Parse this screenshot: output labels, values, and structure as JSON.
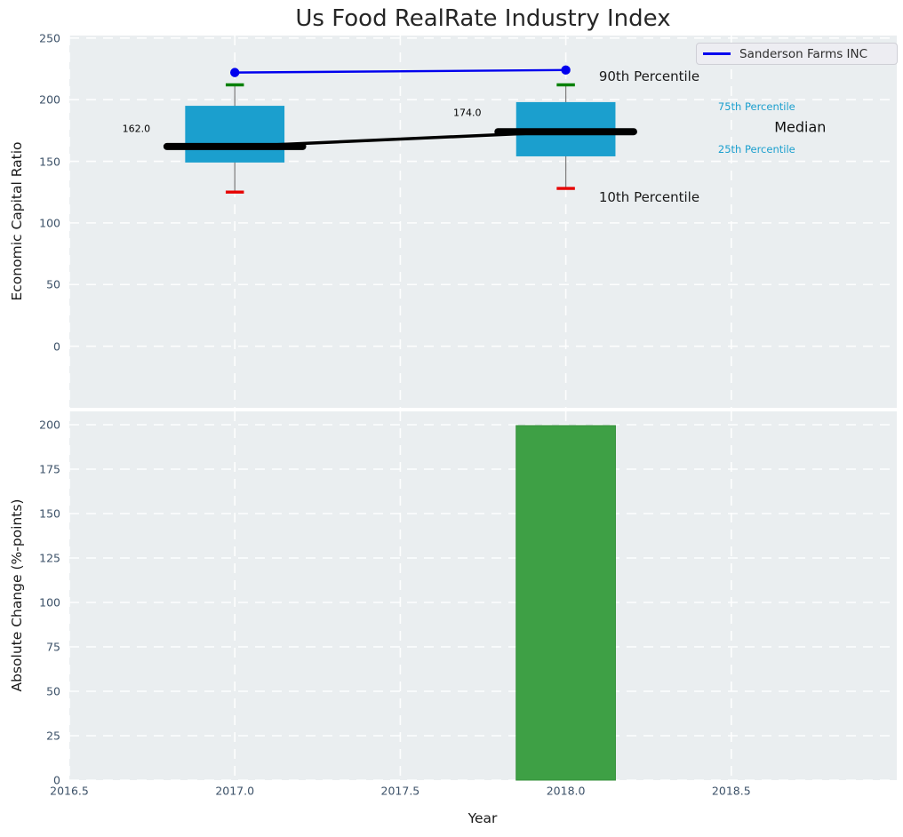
{
  "title": "Us Food RealRate Industry Index",
  "legend": {
    "label": "Sanderson Farms INC",
    "line_color": "#0000ee"
  },
  "chart_data": [
    {
      "type": "boxplot+line",
      "title": "Us Food RealRate Industry Index",
      "ylabel": "Economic Capital Ratio",
      "ylim": [
        -50,
        252
      ],
      "yticks": [
        0,
        50,
        100,
        150,
        200,
        250
      ],
      "ytick_labels": [
        "0",
        "50",
        "100",
        "150",
        "200",
        "250"
      ],
      "xlim": [
        2016.5,
        2019.0
      ],
      "xticks": [
        2016.5,
        2017.0,
        2017.5,
        2018.0,
        2018.5
      ],
      "grid": true,
      "legend_position": "upper right",
      "box_color": "#1b9fce",
      "whisker_color": "#808080",
      "median_color": "#000000",
      "p90_cap_color": "#008000",
      "p10_cap_color": "#e60000",
      "box_width": 0.3,
      "median_width": 0.41,
      "cap_width": 0.055,
      "boxes": [
        {
          "x": 2017,
          "p10": 125,
          "p25": 149,
          "median": 162,
          "p75": 195,
          "p90": 212
        },
        {
          "x": 2018,
          "p10": 128,
          "p25": 154,
          "median": 174,
          "p75": 198,
          "p90": 212
        }
      ],
      "series": [
        {
          "name": "Sanderson Farms INC",
          "type": "line",
          "color": "#0000ee",
          "x": [
            2017,
            2018
          ],
          "values": [
            222,
            224
          ]
        }
      ],
      "annotations": [
        {
          "text": "162.0",
          "x": 2016.66,
          "y": 176,
          "color": "#000000",
          "size": 11
        },
        {
          "text": "174.0",
          "x": 2017.66,
          "y": 189,
          "color": "#000000",
          "size": 11
        },
        {
          "text": "90th Percentile",
          "x": 2018.1,
          "y": 219,
          "color": "#1a1a1a",
          "size": 15
        },
        {
          "text": "10th Percentile",
          "x": 2018.1,
          "y": 121,
          "color": "#1a1a1a",
          "size": 15
        },
        {
          "text": "75th Percentile",
          "x": 2018.46,
          "y": 194,
          "color": "#1b9fce",
          "size": 11.5
        },
        {
          "text": "Median",
          "x": 2018.63,
          "y": 178,
          "color": "#111111",
          "size": 16
        },
        {
          "text": "25th Percentile",
          "x": 2018.46,
          "y": 160,
          "color": "#1b9fce",
          "size": 11.5
        }
      ]
    },
    {
      "type": "bar",
      "ylabel": "Absolute Change (%-points)",
      "xlabel": "Year",
      "ylim": [
        0,
        207.5
      ],
      "yticks": [
        0,
        25,
        50,
        75,
        100,
        125,
        150,
        175,
        200
      ],
      "ytick_labels": [
        "0",
        "25",
        "50",
        "75",
        "100",
        "125",
        "150",
        "175",
        "200"
      ],
      "xlim": [
        2016.5,
        2019.0
      ],
      "xticks": [
        2016.5,
        2017.0,
        2017.5,
        2018.0,
        2018.5
      ],
      "xtick_labels": [
        "2016.5",
        "2017.0",
        "2017.5",
        "2018.0",
        "2018.5"
      ],
      "grid": true,
      "categories": [
        2018
      ],
      "values": [
        199.5
      ],
      "bar_color": "#3ea045",
      "bar_edge_color": "#35903b",
      "bar_width": 0.3
    }
  ],
  "style": {
    "axes_background": "#eaeef0",
    "gridline_color": "#ffffff",
    "tick_color": "#3c5168"
  }
}
